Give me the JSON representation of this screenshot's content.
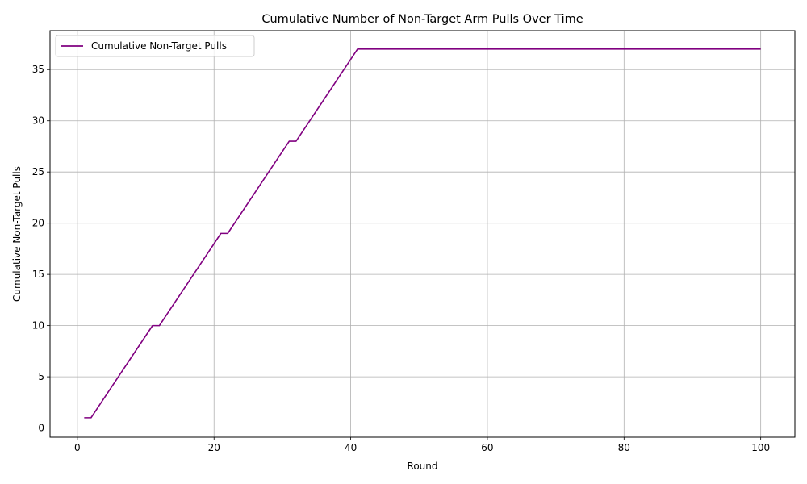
{
  "chart_data": {
    "type": "line",
    "title": "Cumulative Number of Non-Target Arm Pulls Over Time",
    "xlabel": "Round",
    "ylabel": "Cumulative Non-Target Pulls",
    "xlim": [
      -4,
      105
    ],
    "ylim": [
      -0.9,
      38.8
    ],
    "xticks": [
      0,
      20,
      40,
      60,
      80,
      100
    ],
    "yticks": [
      0,
      5,
      10,
      15,
      20,
      25,
      30,
      35
    ],
    "grid": true,
    "legend_position": "top-left",
    "series": [
      {
        "name": "Cumulative Non-Target Pulls",
        "color": "#800080",
        "points": [
          [
            1,
            1
          ],
          [
            2,
            1
          ],
          [
            11,
            10
          ],
          [
            12,
            10
          ],
          [
            21,
            19
          ],
          [
            22,
            19
          ],
          [
            31,
            28
          ],
          [
            32,
            28
          ],
          [
            41,
            37
          ],
          [
            100,
            37
          ]
        ]
      }
    ]
  }
}
